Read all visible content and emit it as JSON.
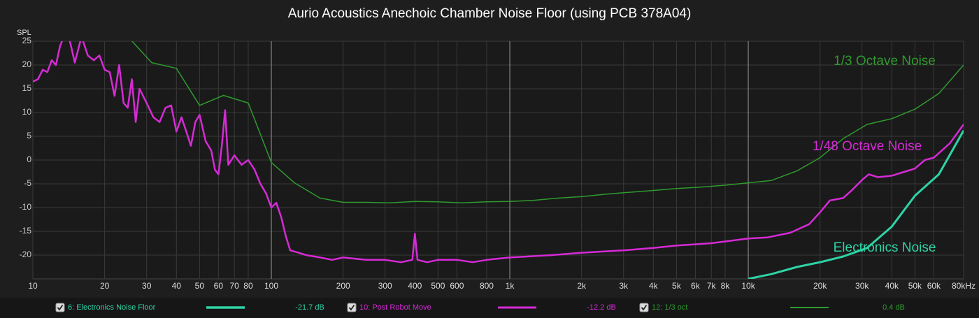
{
  "chart_data": {
    "type": "line",
    "title": "Aurio Acoustics Anechoic Chamber Noise Floor (using PCB 378A04)",
    "y_label": "SPL",
    "xscale": "log",
    "grid": true,
    "xlim": [
      10,
      80000
    ],
    "ylim": [
      -25,
      25
    ],
    "xticks": [
      10,
      20,
      30,
      40,
      50,
      60,
      70,
      80,
      100,
      200,
      300,
      400,
      500,
      600,
      800,
      {
        "value": 1000,
        "label": "1k"
      },
      {
        "value": 2000,
        "label": "2k"
      },
      {
        "value": 3000,
        "label": "3k"
      },
      {
        "value": 4000,
        "label": "4k"
      },
      {
        "value": 5000,
        "label": "5k"
      },
      {
        "value": 6000,
        "label": "6k"
      },
      {
        "value": 7000,
        "label": "7k"
      },
      {
        "value": 8000,
        "label": "8k"
      },
      {
        "value": 10000,
        "label": "10k"
      },
      {
        "value": 20000,
        "label": "20k"
      },
      {
        "value": 30000,
        "label": "30k"
      },
      {
        "value": 40000,
        "label": "40k"
      },
      {
        "value": 50000,
        "label": "50k"
      },
      {
        "value": 60000,
        "label": "60k"
      },
      {
        "value": 80000,
        "label": "80kHz"
      }
    ],
    "yticks": [
      25,
      20,
      15,
      10,
      5,
      0,
      -5,
      -10,
      -15,
      -20
    ],
    "series": [
      {
        "name": "6: Electronics Noise Floor",
        "readout": "-21.7 dB",
        "annotation": "Electronics Noise",
        "color": "#2ed3a6",
        "width": 3,
        "x": [
          10000,
          12500,
          16000,
          20000,
          25000,
          31500,
          40000,
          50000,
          63000,
          80000
        ],
        "values": [
          -25,
          -24,
          -22.5,
          -21.5,
          -20.3,
          -18.5,
          -14,
          -7.5,
          -3,
          6.2
        ]
      },
      {
        "name": "10: Post Robot Move",
        "readout": "-12.2 dB",
        "annotation": "1/48 Octave Noise",
        "color": "#d62ad6",
        "width": 2.5,
        "x": [
          10,
          10.5,
          11,
          11.5,
          12,
          12.5,
          13,
          13.5,
          14,
          15,
          16,
          17,
          18,
          19,
          20,
          21,
          22,
          23,
          24,
          25,
          26,
          27,
          28,
          30,
          32,
          34,
          36,
          38,
          40,
          42,
          44,
          46,
          48,
          50,
          53,
          56,
          58,
          60,
          62,
          64,
          66,
          70,
          75,
          80,
          85,
          90,
          95,
          100,
          105,
          110,
          115,
          120,
          130,
          140,
          160,
          180,
          200,
          250,
          300,
          350,
          390,
          400,
          410,
          450,
          500,
          600,
          700,
          800,
          1000,
          1500,
          2000,
          3000,
          4000,
          5000,
          7000,
          10000,
          12000,
          15000,
          18000,
          20000,
          22000,
          25000,
          27000,
          30000,
          32000,
          35000,
          40000,
          45000,
          50000,
          55000,
          60000,
          70000,
          80000
        ],
        "values": [
          16.5,
          17,
          19,
          18.5,
          21,
          20,
          24,
          26,
          27,
          20.5,
          26,
          22,
          21,
          22,
          19,
          18.5,
          13.5,
          20,
          12,
          11,
          17,
          8,
          15,
          12,
          9,
          8,
          11,
          11.5,
          6,
          9,
          6,
          3,
          8,
          9.5,
          4,
          2,
          -2,
          -3,
          3,
          10.5,
          -1,
          1,
          -1,
          0,
          -2,
          -5,
          -7,
          -10,
          -9,
          -12,
          -16,
          -19,
          -19.5,
          -20,
          -20.5,
          -21,
          -20.5,
          -21,
          -21,
          -21.5,
          -21,
          -15.5,
          -21,
          -21.5,
          -21,
          -21,
          -21.5,
          -21,
          -20.5,
          -20,
          -19.5,
          -19,
          -18.5,
          -18,
          -17.5,
          -16.5,
          -16.3,
          -15.3,
          -13.5,
          -11,
          -8.5,
          -8,
          -6.5,
          -4.2,
          -3,
          -3.6,
          -3.3,
          -2.5,
          -1.8,
          0,
          0.5,
          3.5,
          7.5
        ]
      },
      {
        "name": "12: 1/3 oct",
        "readout": "0.4 dB",
        "annotation": "1/3 Octave Noise",
        "color": "#2f9a2f",
        "width": 1.5,
        "x": [
          25,
          31.5,
          40,
          50,
          63,
          80,
          100,
          125,
          160,
          200,
          250,
          315,
          400,
          500,
          630,
          800,
          1000,
          1250,
          1600,
          2000,
          2500,
          3150,
          4000,
          5000,
          6300,
          8000,
          10000,
          12500,
          16000,
          20000,
          25000,
          31500,
          40000,
          50000,
          63000,
          80000
        ],
        "values": [
          26,
          20.5,
          19.3,
          11.5,
          13.6,
          12,
          -0.5,
          -4.8,
          -8,
          -8.9,
          -8.9,
          -9,
          -8.7,
          -8.8,
          -9,
          -8.8,
          -8.7,
          -8.5,
          -8,
          -7.7,
          -7.2,
          -6.8,
          -6.4,
          -6,
          -5.7,
          -5.3,
          -4.8,
          -4.3,
          -2.3,
          0.5,
          4.5,
          7.5,
          8.7,
          10.7,
          14,
          20
        ]
      }
    ]
  }
}
